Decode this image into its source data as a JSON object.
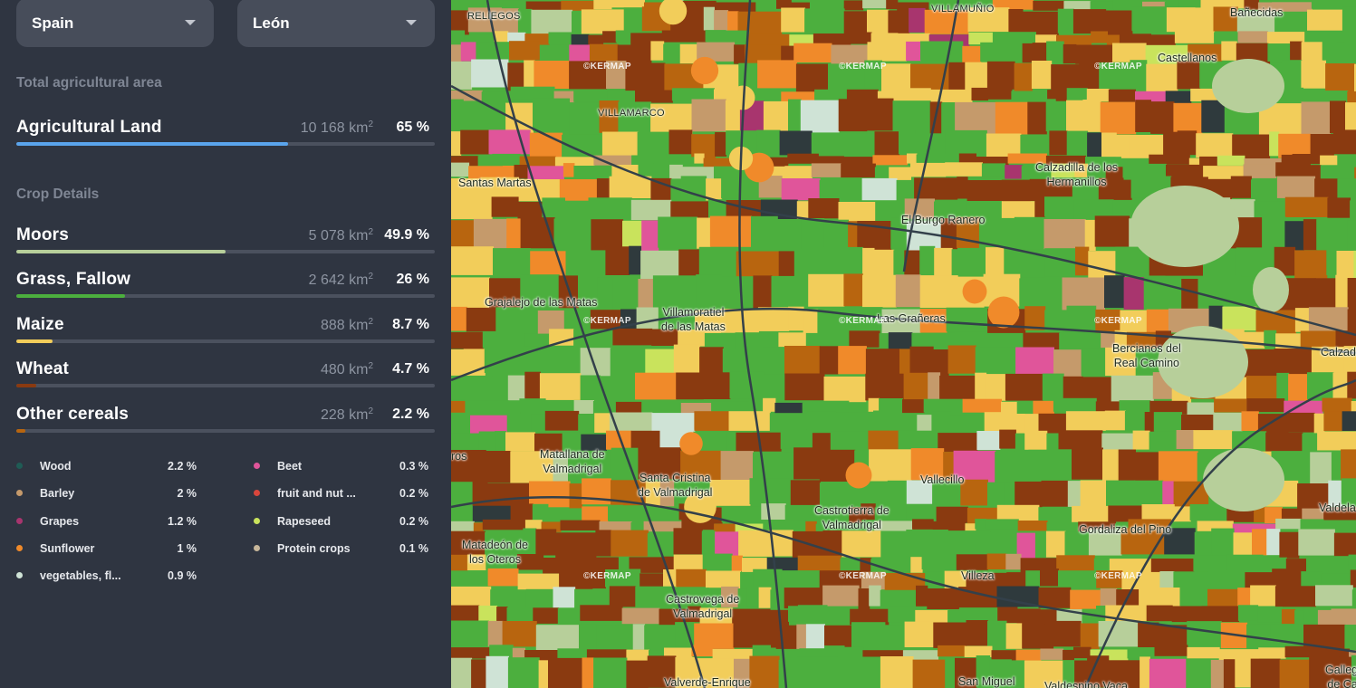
{
  "filters": {
    "country": "Spain",
    "region": "León"
  },
  "total": {
    "title": "Total agricultural area",
    "label": "Agricultural Land",
    "area": "10 168 km",
    "pct": "65 %",
    "fraction": 0.65,
    "color": "#5aa4ec"
  },
  "crops": {
    "title": "Crop Details",
    "items": [
      {
        "label": "Moors",
        "area": "5 078 km",
        "pct": "49.9 %",
        "fraction": 0.499,
        "color": "#b7cf9a"
      },
      {
        "label": "Grass, Fallow",
        "area": "2 642 km",
        "pct": "26 %",
        "fraction": 0.26,
        "color": "#4caf3e"
      },
      {
        "label": "Maize",
        "area": "888 km",
        "pct": "8.7 %",
        "fraction": 0.087,
        "color": "#f2cd5a"
      },
      {
        "label": "Wheat",
        "area": "480 km",
        "pct": "4.7 %",
        "fraction": 0.047,
        "color": "#8a3a10"
      },
      {
        "label": "Other cereals",
        "area": "228 km",
        "pct": "2.2 %",
        "fraction": 0.022,
        "color": "#b8650f"
      }
    ]
  },
  "legend": {
    "left": [
      {
        "name": "Wood",
        "pct": "2.2 %",
        "color": "#1f5c55"
      },
      {
        "name": "Barley",
        "pct": "2 %",
        "color": "#c59a6b"
      },
      {
        "name": "Grapes",
        "pct": "1.2 %",
        "color": "#a8356e"
      },
      {
        "name": "Sunflower",
        "pct": "1 %",
        "color": "#f08a2a"
      },
      {
        "name": "vegetables, fl...",
        "pct": "0.9 %",
        "color": "#cfe3d6"
      }
    ],
    "right": [
      {
        "name": "Beet",
        "pct": "0.3 %",
        "color": "#e0559a"
      },
      {
        "name": "fruit and nut ...",
        "pct": "0.2 %",
        "color": "#d9463c"
      },
      {
        "name": "Rapeseed",
        "pct": "0.2 %",
        "color": "#c9e35c"
      },
      {
        "name": "Protein crops",
        "pct": "0.1 %",
        "color": "#c7b69a"
      }
    ]
  },
  "map": {
    "watermark": "©KERMAP",
    "places": [
      {
        "name": "RELIEGOS",
        "small": true
      },
      {
        "name": "VILLAMUÑIO",
        "small": true
      },
      {
        "name": "Bañecidas"
      },
      {
        "name": "Castellanos"
      },
      {
        "name": "VILLAMARCO",
        "small": true
      },
      {
        "name": "Santas Martas"
      },
      {
        "name": "Calzadilla de los\nHermanillos"
      },
      {
        "name": "El Burgo Ranero"
      },
      {
        "name": "Grajalejo de las Matas"
      },
      {
        "name": "Villamoratiel\nde las Matas"
      },
      {
        "name": "Las Grañeras"
      },
      {
        "name": "Bercianos del\nReal Camino"
      },
      {
        "name": "Calzada d"
      },
      {
        "name": "ros"
      },
      {
        "name": "Matallana de\nValmadrigal"
      },
      {
        "name": "Santa Cristina\nde Valmadrigal"
      },
      {
        "name": "Vallecillo"
      },
      {
        "name": "Valdela"
      },
      {
        "name": "Castrotierra de\nValmadrigal"
      },
      {
        "name": "Gordaliza del Pino"
      },
      {
        "name": "Matadeón de\nlos Oteros"
      },
      {
        "name": "Villeza"
      },
      {
        "name": "Castrovega de\nValmadrigal"
      },
      {
        "name": "Valverde-Enrique"
      },
      {
        "name": "San Miguel"
      },
      {
        "name": "Valdespino Vaca"
      },
      {
        "name": "Galleguil\nde Cam"
      }
    ]
  }
}
